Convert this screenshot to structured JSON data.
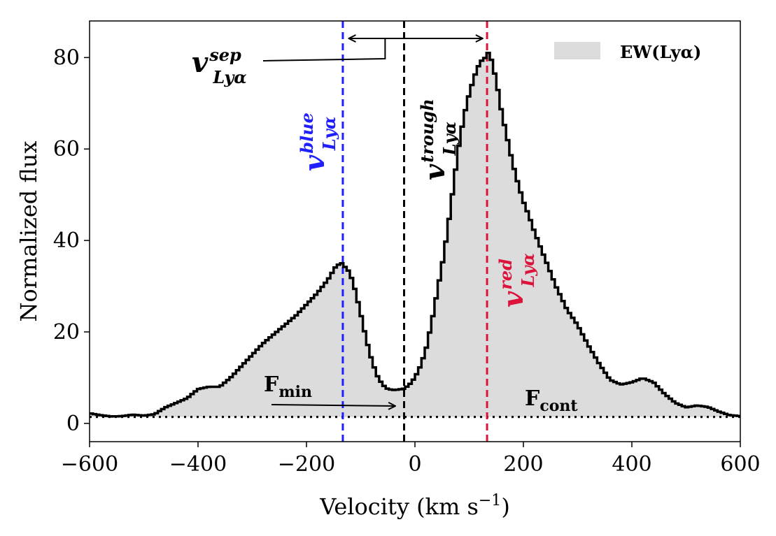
{
  "chart_data": {
    "type": "area",
    "xlabel": "Velocity (km s",
    "xlabel_sup": "−1",
    "xlabel_end": ")",
    "ylabel": "Normalized flux",
    "xlim": [
      -600,
      600
    ],
    "ylim": [
      -4,
      88
    ],
    "xticks": [
      -600,
      -400,
      -200,
      0,
      200,
      400,
      600
    ],
    "xtick_labels": [
      "−600",
      "−400",
      "−200",
      "0",
      "200",
      "400",
      "600"
    ],
    "yticks": [
      0,
      20,
      40,
      60,
      80
    ],
    "ytick_labels": [
      "0",
      "20",
      "40",
      "60",
      "80"
    ],
    "grid": false,
    "legend_position": "top-right",
    "series": [
      {
        "name": "EW(Lyα)",
        "fill_color": "#dcdcdc",
        "line_color": "#000000",
        "x": [
          -600,
          -580,
          -560,
          -540,
          -520,
          -500,
          -480,
          -460,
          -440,
          -420,
          -400,
          -380,
          -360,
          -340,
          -320,
          -300,
          -280,
          -260,
          -240,
          -220,
          -200,
          -180,
          -160,
          -145,
          -135,
          -120,
          -110,
          -100,
          -90,
          -80,
          -70,
          -60,
          -50,
          -40,
          -30,
          -20,
          -10,
          0,
          10,
          20,
          30,
          40,
          50,
          60,
          70,
          80,
          90,
          100,
          110,
          120,
          130,
          135,
          140,
          150,
          160,
          170,
          180,
          190,
          200,
          210,
          220,
          230,
          240,
          250,
          260,
          280,
          300,
          320,
          340,
          360,
          380,
          400,
          420,
          440,
          460,
          480,
          500,
          520,
          540,
          560,
          580,
          600
        ],
        "y": [
          2.2,
          1.8,
          1.5,
          1.6,
          1.9,
          1.7,
          2.0,
          3.5,
          4.5,
          5.5,
          7.5,
          8.0,
          8.0,
          10,
          12.5,
          15,
          17.5,
          19.5,
          21.5,
          23.5,
          26,
          28.5,
          31.5,
          34.5,
          35,
          33,
          29,
          24,
          18.5,
          14,
          10.5,
          8.5,
          7.5,
          7.3,
          7.4,
          7.6,
          8.5,
          10,
          12.5,
          16,
          21.5,
          28,
          34.5,
          42,
          51,
          60,
          67,
          72,
          76,
          79,
          80,
          81,
          80,
          75,
          68,
          62.5,
          57,
          52.5,
          48.5,
          45.5,
          42,
          39,
          36,
          33,
          30,
          25,
          21.5,
          17,
          13,
          9.5,
          8.5,
          9.0,
          9.9,
          9.0,
          6.5,
          4.5,
          3.5,
          3.9,
          3.6,
          2.6,
          1.8,
          1.6
        ]
      }
    ],
    "continuum_level": 1.4,
    "vertical_lines": [
      {
        "name": "blue",
        "x": -133,
        "color": "#1f1fff"
      },
      {
        "name": "trough",
        "x": -20,
        "color": "#000000"
      },
      {
        "name": "red",
        "x": 133,
        "color": "#dc143c"
      }
    ],
    "annotations": {
      "v_blue": {
        "main": "v",
        "sup": "blue",
        "sub": "Lyα",
        "color": "#1f1fff"
      },
      "v_trough": {
        "main": "v",
        "sup": "trough",
        "sub": "Lyα",
        "color": "#000000"
      },
      "v_red": {
        "main": "v",
        "sup": "red",
        "sub": "Lyα",
        "color": "#dc143c"
      },
      "v_sep": {
        "main": "v",
        "sup": "sep",
        "sub": "Lyα",
        "color": "#000000"
      },
      "f_min": {
        "main": "F",
        "sub": "min"
      },
      "f_cont": {
        "main": "F",
        "sub": "cont"
      }
    }
  }
}
